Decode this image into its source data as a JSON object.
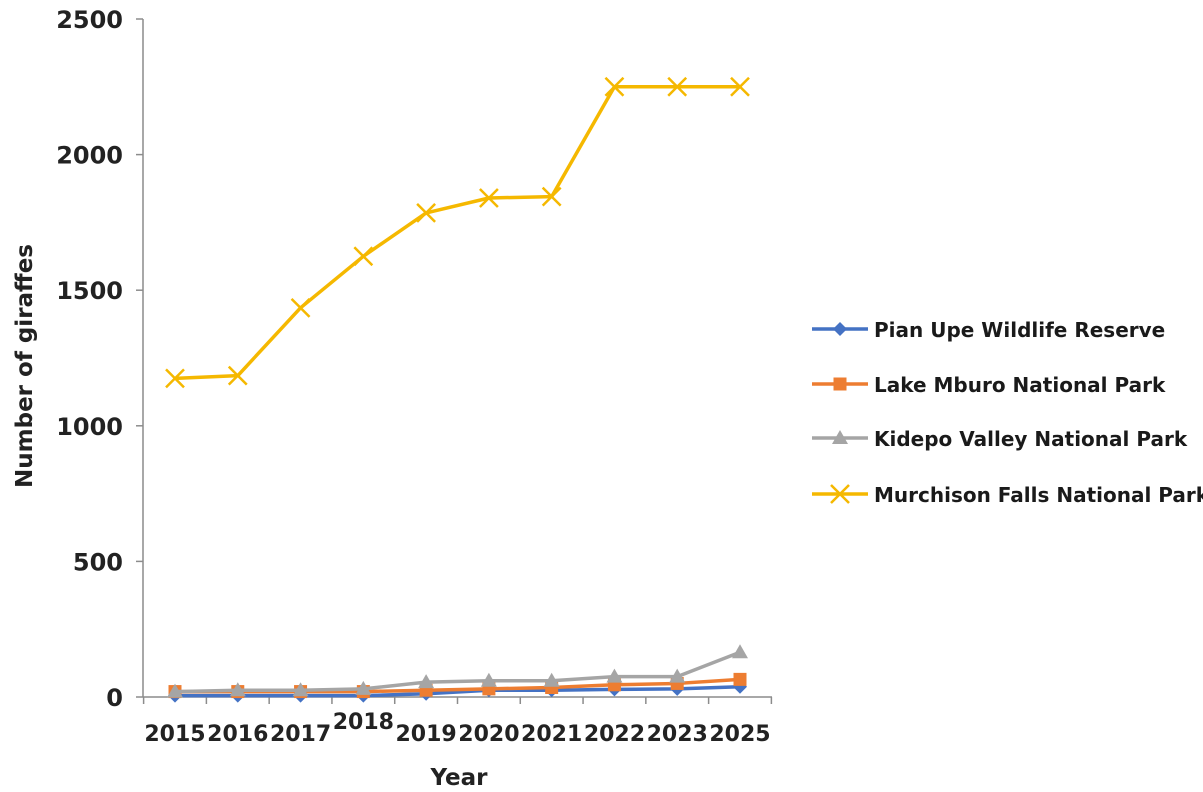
{
  "chart_data": {
    "type": "line",
    "categories": [
      "2015",
      "2016",
      "2017",
      "2018",
      "2019",
      "2020",
      "2021",
      "2022",
      "2023",
      "2025"
    ],
    "xlabel": "Year",
    "ylabel": "Number of giraffes",
    "ylim": [
      0,
      2500
    ],
    "yticks": [
      0,
      500,
      1000,
      1500,
      2000,
      2500
    ],
    "grid": false,
    "legend_position": "right",
    "series": [
      {
        "name": "Pian Upe Wildlife Reserve",
        "color": "#4472C4",
        "marker": "diamond",
        "values": [
          5,
          5,
          5,
          5,
          12,
          25,
          25,
          28,
          30,
          38
        ]
      },
      {
        "name": "Lake Mburo National Park",
        "color": "#ED7D31",
        "marker": "square",
        "values": [
          20,
          20,
          20,
          20,
          25,
          30,
          35,
          45,
          50,
          65
        ]
      },
      {
        "name": "Kidepo Valley National Park",
        "color": "#A5A5A5",
        "marker": "triangle",
        "values": [
          20,
          25,
          25,
          30,
          55,
          60,
          60,
          75,
          75,
          165
        ]
      },
      {
        "name": "Murchison Falls National Park",
        "color": "#F5B800",
        "marker": "x",
        "values": [
          1175,
          1185,
          1435,
          1625,
          1785,
          1840,
          1845,
          2250,
          2250,
          2250
        ]
      }
    ]
  }
}
